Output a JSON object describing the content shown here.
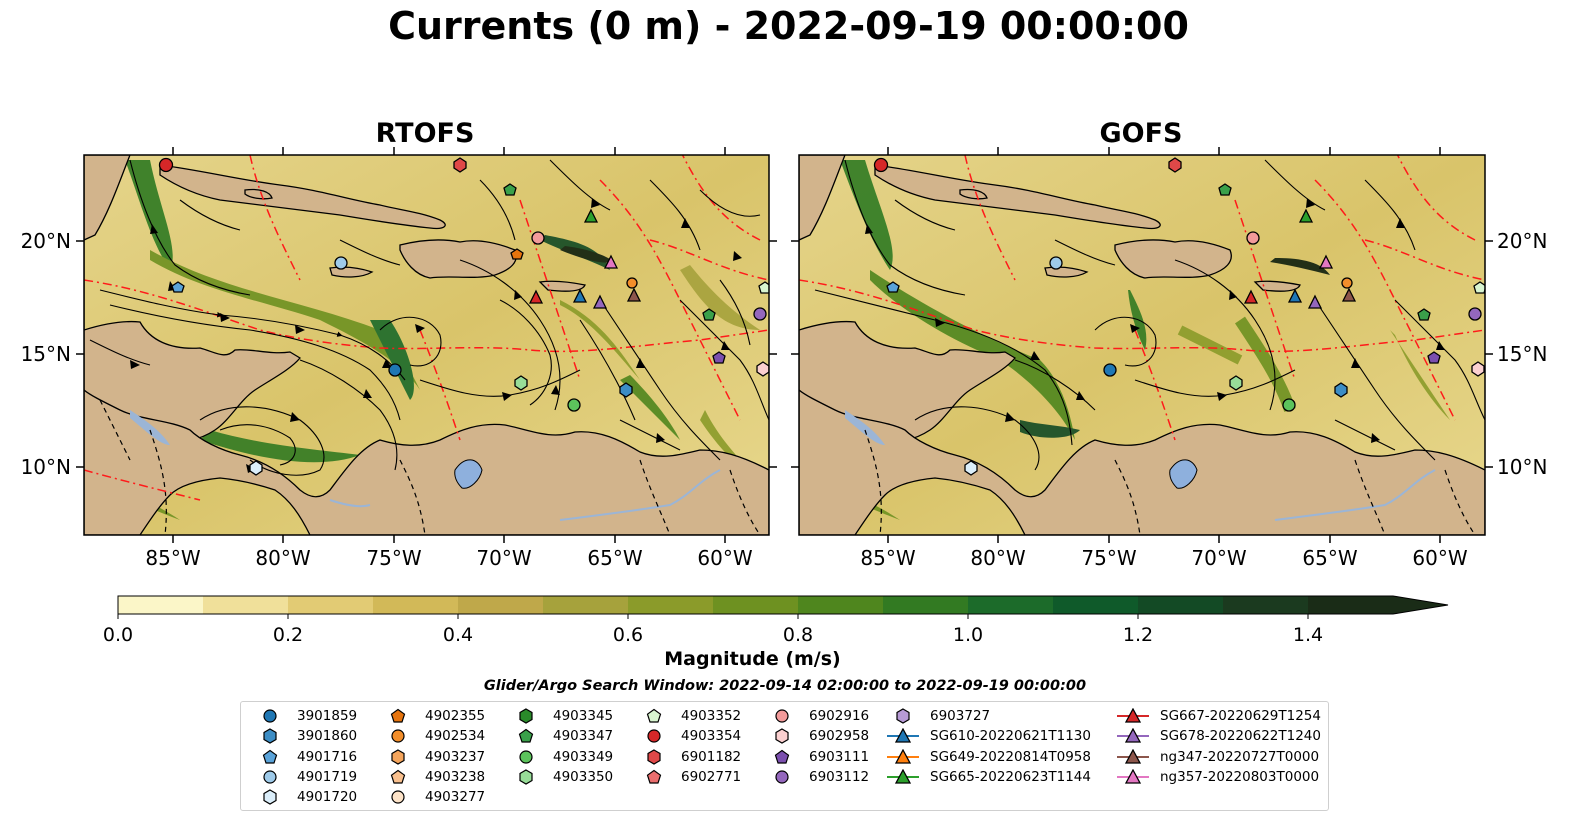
{
  "title": "Currents (0 m) - 2022-09-19 00:00:00",
  "panels": [
    {
      "title": "RTOFS"
    },
    {
      "title": "GOFS"
    }
  ],
  "axes": {
    "lon_ticks": [
      "85°W",
      "80°W",
      "75°W",
      "70°W",
      "65°W",
      "60°W"
    ],
    "lat_ticks": [
      "20°N",
      "15°N",
      "10°N"
    ]
  },
  "colorbar": {
    "ticks": [
      "0.0",
      "0.2",
      "0.4",
      "0.6",
      "0.8",
      "1.0",
      "1.2",
      "1.4"
    ],
    "label": "Magnitude (m/s)",
    "range": [
      0,
      1.5
    ],
    "colors": [
      "#fbf6c8",
      "#f0e09a",
      "#e2cb74",
      "#d2b958",
      "#bfa84a",
      "#a6a23c",
      "#8b9b2a",
      "#6e9121",
      "#4f861e",
      "#327a22",
      "#1c6b2a",
      "#0f5a2a",
      "#134a25",
      "#1b3a1f",
      "#1a2c17"
    ]
  },
  "search_window": "Glider/Argo Search Window: 2022-09-14 02:00:00 to 2022-09-19 00:00:00",
  "legend": {
    "col1": [
      {
        "label": "3901859",
        "marker": "circle",
        "color": "#1f77b4"
      },
      {
        "label": "3901860",
        "marker": "hexagon",
        "color": "#3c8dc5"
      },
      {
        "label": "4901716",
        "marker": "pentagon",
        "color": "#5aa3d9"
      },
      {
        "label": "4901719",
        "marker": "circle",
        "color": "#9ecae9"
      },
      {
        "label": "4901720",
        "marker": "hexagon",
        "color": "#dbeefa"
      }
    ],
    "col2": [
      {
        "label": "4902355",
        "marker": "pentagon",
        "color": "#e6740e"
      },
      {
        "label": "4902534",
        "marker": "circle",
        "color": "#f28e2b"
      },
      {
        "label": "4903237",
        "marker": "hexagon",
        "color": "#f5a55c"
      },
      {
        "label": "4903238",
        "marker": "pentagon",
        "color": "#f9c08e"
      },
      {
        "label": "4903277",
        "marker": "circle",
        "color": "#fde3c8"
      }
    ],
    "col3": [
      {
        "label": "4903345",
        "marker": "hexagon",
        "color": "#2a8a2a"
      },
      {
        "label": "4903347",
        "marker": "pentagon",
        "color": "#3aa04a"
      },
      {
        "label": "4903349",
        "marker": "circle",
        "color": "#5cc35c"
      },
      {
        "label": "4903350",
        "marker": "hexagon",
        "color": "#98dd98"
      }
    ],
    "col4": [
      {
        "label": "4903352",
        "marker": "pentagon",
        "color": "#d9f5d0"
      },
      {
        "label": "4903354",
        "marker": "circle",
        "color": "#d62728"
      },
      {
        "label": "6901182",
        "marker": "hexagon",
        "color": "#e04848"
      },
      {
        "label": "6902771",
        "marker": "pentagon",
        "color": "#ea6e6e"
      }
    ],
    "col5": [
      {
        "label": "6902916",
        "marker": "circle",
        "color": "#f29a9a"
      },
      {
        "label": "6902958",
        "marker": "hexagon",
        "color": "#fbd0d0"
      },
      {
        "label": "6903111",
        "marker": "pentagon",
        "color": "#7b4fae"
      },
      {
        "label": "6903112",
        "marker": "circle",
        "color": "#9467bd"
      }
    ],
    "col6": [
      {
        "label": "6903727",
        "marker": "hexagon",
        "color": "#b79ad6"
      },
      {
        "label": "SG610-20220621T1130",
        "marker": "triangle",
        "color": "#1f77b4"
      },
      {
        "label": "SG649-20220814T0958",
        "marker": "triangle",
        "color": "#ff7f0e"
      },
      {
        "label": "SG665-20220623T1144",
        "marker": "triangle",
        "color": "#2ca02c"
      }
    ],
    "col7": [
      {
        "label": "SG667-20220629T1254",
        "marker": "triangle",
        "color": "#d62728"
      },
      {
        "label": "SG678-20220622T1240",
        "marker": "triangle",
        "color": "#9467bd"
      },
      {
        "label": "ng347-20220727T0000",
        "marker": "triangle",
        "color": "#8c564b"
      },
      {
        "label": "ng357-20220803T0000",
        "marker": "triangle",
        "color": "#e377c2"
      }
    ]
  }
}
